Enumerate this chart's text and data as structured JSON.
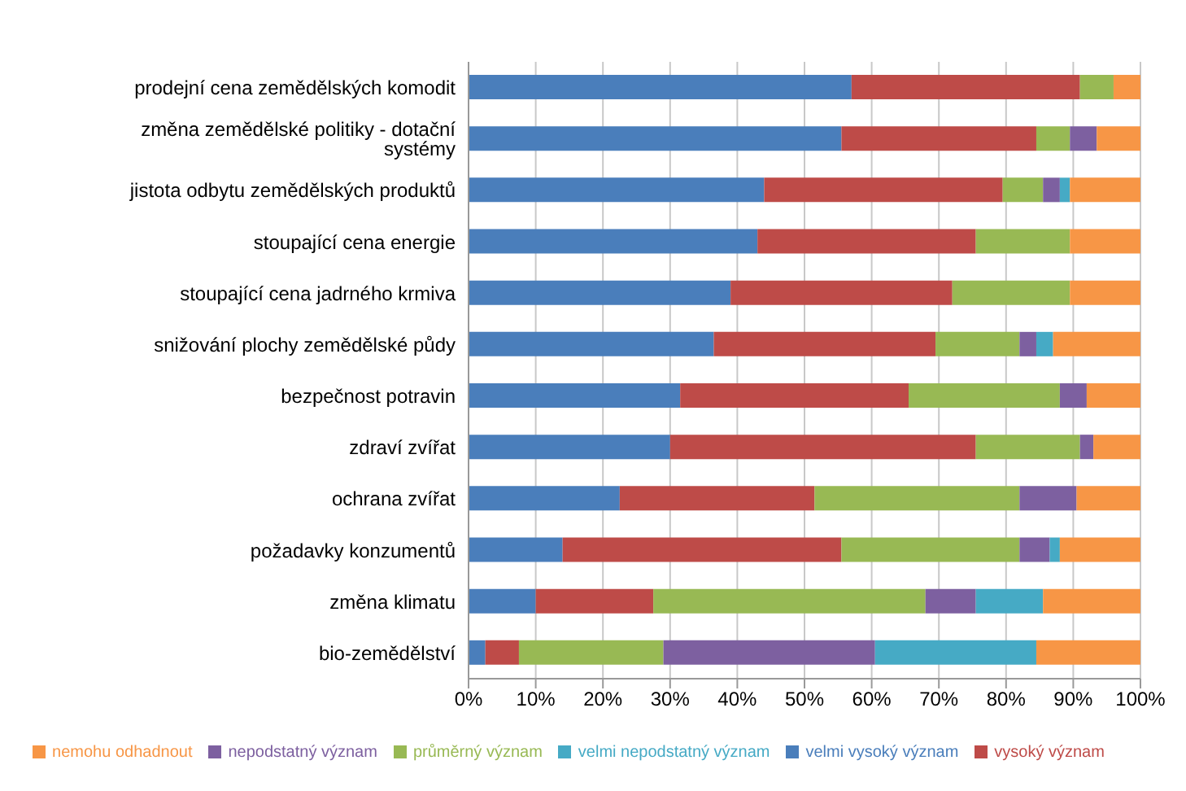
{
  "chart_data": {
    "type": "bar",
    "orientation": "horizontal",
    "stacked": true,
    "categories": [
      "prodejní cena zemědělských komodit",
      "změna zemědělské politiky - dotační systémy",
      "jistota odbytu zemědělských produktů",
      "stoupající cena energie",
      "stoupající cena jadrného krmiva",
      "snižování plochy zemědělské půdy",
      "bezpečnost potravin",
      "zdraví zvířat",
      "ochrana zvířat",
      "požadavky konzumentů",
      "změna klimatu",
      "bio-zemědělství"
    ],
    "series": [
      {
        "name": "velmi vysoký význam",
        "color": "#4a7ebb",
        "values": [
          57,
          55.5,
          44,
          43,
          39,
          36.5,
          31.5,
          30,
          22.5,
          14,
          10,
          2.5
        ]
      },
      {
        "name": "vysoký význam",
        "color": "#be4b48",
        "values": [
          34,
          29,
          35.5,
          32.5,
          33,
          33,
          34,
          45.5,
          29,
          41.5,
          17.5,
          5
        ]
      },
      {
        "name": "průměrný význam",
        "color": "#98b954",
        "values": [
          5,
          5,
          6,
          14,
          17.5,
          12.5,
          22.5,
          15.5,
          30.5,
          26.5,
          40.5,
          21.5
        ]
      },
      {
        "name": "nepodstatný význam",
        "color": "#7d60a0",
        "values": [
          0,
          4,
          2.5,
          0,
          0,
          2.5,
          4,
          2,
          8.5,
          4.5,
          7.5,
          31.5
        ]
      },
      {
        "name": "velmi nepodstatný význam",
        "color": "#46aac5",
        "values": [
          0,
          0,
          1.5,
          0,
          0,
          2.5,
          0,
          0,
          0,
          1.5,
          10,
          24
        ]
      },
      {
        "name": "nemohu odhadnout",
        "color": "#f79646",
        "values": [
          4,
          6.5,
          10.5,
          10.5,
          10.5,
          13,
          8,
          7,
          9.5,
          12,
          14.5,
          15.5
        ]
      }
    ],
    "xlim": [
      0,
      100
    ],
    "xticks": [
      {
        "value": 0,
        "label": "0%"
      },
      {
        "value": 10,
        "label": "10%"
      },
      {
        "value": 20,
        "label": "20%"
      },
      {
        "value": 30,
        "label": "30%"
      },
      {
        "value": 40,
        "label": "40%"
      },
      {
        "value": 50,
        "label": "50%"
      },
      {
        "value": 60,
        "label": "60%"
      },
      {
        "value": 70,
        "label": "70%"
      },
      {
        "value": 80,
        "label": "80%"
      },
      {
        "value": 90,
        "label": "90%"
      },
      {
        "value": 100,
        "label": "100%"
      }
    ],
    "grid": "x",
    "legend": "bottom"
  }
}
